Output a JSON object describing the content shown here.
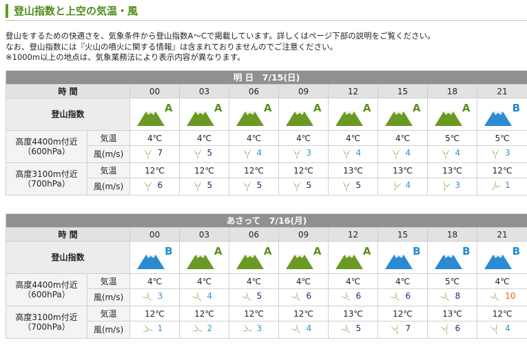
{
  "header": {
    "title": "登山指数と上空の気温・風"
  },
  "intro": [
    "登山をするための快適さを、気象条件から登山指数A～Cで掲載しています。詳しくはページ下部の説明をご覧ください。",
    "なお、登山指数には『火山の噴火に関する情報』は含まれておりませんのでご注意ください。",
    "※1000m以上の地点は、気象業務法により表示内容が異なります。"
  ],
  "colors": {
    "grade_A": "#5b8f1a",
    "grade_B": "#1f8bd1",
    "mountain_A": "#6a9a23",
    "mountain_B": "#2a8bd3",
    "header_green": "#4f8c1c"
  },
  "tables": [
    {
      "day": "明 日　7/15(日)",
      "time_label": "時 間",
      "hours": [
        "00",
        "03",
        "06",
        "09",
        "12",
        "15",
        "18",
        "21"
      ],
      "index_label": "登山指数",
      "index": [
        "A",
        "A",
        "A",
        "A",
        "A",
        "A",
        "A",
        "B"
      ],
      "levels": [
        {
          "altitude": "高度4400m付近",
          "pressure": "（600hPa）",
          "temp_label": "気温",
          "wind_label": "風(m/s)",
          "temps": [
            "4℃",
            "4℃",
            "4℃",
            "4℃",
            "4℃",
            "4℃",
            "5℃",
            "5℃"
          ],
          "winds": [
            {
              "speed": "7",
              "color": "s0",
              "dir": 0
            },
            {
              "speed": "5",
              "color": "s0",
              "dir": 0
            },
            {
              "speed": "4",
              "color": "s1",
              "dir": 0
            },
            {
              "speed": "3",
              "color": "s1",
              "dir": 0
            },
            {
              "speed": "4",
              "color": "s1",
              "dir": 0
            },
            {
              "speed": "4",
              "color": "s1",
              "dir": 0
            },
            {
              "speed": "4",
              "color": "s1",
              "dir": 0
            },
            {
              "speed": "3",
              "color": "s1",
              "dir": 0
            }
          ]
        },
        {
          "altitude": "高度3100m付近",
          "pressure": "（700hPa）",
          "temp_label": "気温",
          "wind_label": "風(m/s)",
          "temps": [
            "12℃",
            "12℃",
            "12℃",
            "12℃",
            "13℃",
            "13℃",
            "13℃",
            "12℃"
          ],
          "winds": [
            {
              "speed": "6",
              "color": "s0",
              "dir": 0
            },
            {
              "speed": "5",
              "color": "s0",
              "dir": 0
            },
            {
              "speed": "5",
              "color": "s0",
              "dir": 0
            },
            {
              "speed": "5",
              "color": "s0",
              "dir": 0
            },
            {
              "speed": "5",
              "color": "s0",
              "dir": 0
            },
            {
              "speed": "4",
              "color": "s1",
              "dir": 20
            },
            {
              "speed": "3",
              "color": "s1",
              "dir": 20
            },
            {
              "speed": "1",
              "color": "s1",
              "dir": 45
            }
          ]
        }
      ]
    },
    {
      "day": "あさって　7/16(月)",
      "time_label": "時 間",
      "hours": [
        "00",
        "03",
        "06",
        "09",
        "12",
        "15",
        "18",
        "21"
      ],
      "index_label": "登山指数",
      "index": [
        "B",
        "A",
        "A",
        "A",
        "A",
        "B",
        "B",
        "B"
      ],
      "levels": [
        {
          "altitude": "高度4400m付近",
          "pressure": "（600hPa）",
          "temp_label": "気温",
          "wind_label": "風(m/s)",
          "temps": [
            "4℃",
            "4℃",
            "4℃",
            "4℃",
            "4℃",
            "4℃",
            "5℃",
            "4℃"
          ],
          "winds": [
            {
              "speed": "3",
              "color": "s1",
              "dir": -45
            },
            {
              "speed": "4",
              "color": "s1",
              "dir": -45
            },
            {
              "speed": "5",
              "color": "s0",
              "dir": -45
            },
            {
              "speed": "6",
              "color": "s0",
              "dir": -45
            },
            {
              "speed": "6",
              "color": "s0",
              "dir": -45
            },
            {
              "speed": "6",
              "color": "s0",
              "dir": -45
            },
            {
              "speed": "8",
              "color": "s0",
              "dir": -45
            },
            {
              "speed": "10",
              "color": "s3",
              "dir": -45
            }
          ]
        },
        {
          "altitude": "高度3100m付近",
          "pressure": "（700hPa）",
          "temp_label": "気温",
          "wind_label": "風(m/s)",
          "temps": [
            "12℃",
            "12℃",
            "12℃",
            "12℃",
            "13℃",
            "12℃",
            "13℃",
            "12℃"
          ],
          "winds": [
            {
              "speed": "1",
              "color": "s1",
              "dir": -80
            },
            {
              "speed": "2",
              "color": "s1",
              "dir": -70
            },
            {
              "speed": "3",
              "color": "s1",
              "dir": -70
            },
            {
              "speed": "4",
              "color": "s1",
              "dir": -45
            },
            {
              "speed": "5",
              "color": "s0",
              "dir": -45
            },
            {
              "speed": "7",
              "color": "s0",
              "dir": -20
            },
            {
              "speed": "6",
              "color": "s0",
              "dir": -20
            },
            {
              "speed": "4",
              "color": "s1",
              "dir": -20
            }
          ]
        }
      ]
    }
  ]
}
